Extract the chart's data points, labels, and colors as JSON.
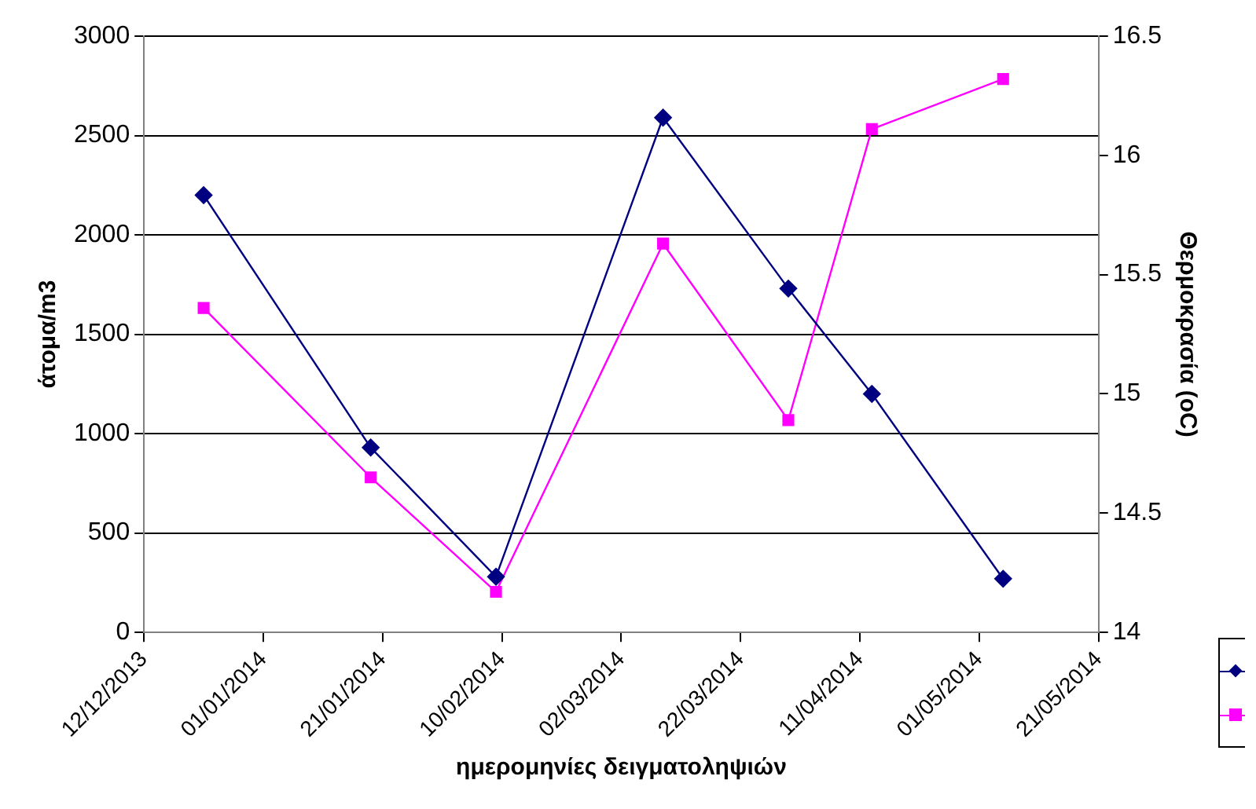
{
  "chart_data": {
    "type": "line",
    "xlabel": "ημερομηνίες δειγματοληψιών",
    "ylabel": "άτομα/m3",
    "y2label": "Θερμοκρασία (oC)",
    "x": [
      "2013-12-22",
      "2014-01-19",
      "2014-02-09",
      "2014-03-09",
      "2014-03-30",
      "2014-04-13",
      "2014-05-05"
    ],
    "series": [
      {
        "color": "#000080",
        "marker": "diamond",
        "values": [
          2200,
          930,
          280,
          2590,
          1730,
          1200,
          270
        ]
      },
      {
        "color": "#ff00ff",
        "marker": "square",
        "axis": "y2",
        "values": [
          15.36,
          14.65,
          14.17,
          15.63,
          14.89,
          16.11,
          16.32
        ]
      }
    ],
    "xlim": [
      "2013-12-12",
      "2014-05-21"
    ],
    "xticks": [
      {
        "value": "2013-12-12",
        "label": "12/12/2013"
      },
      {
        "value": "2014-01-01",
        "label": "01/01/2014"
      },
      {
        "value": "2014-01-21",
        "label": "21/01/2014"
      },
      {
        "value": "2014-02-10",
        "label": "10/02/2014"
      },
      {
        "value": "2014-03-02",
        "label": "02/03/2014"
      },
      {
        "value": "2014-03-22",
        "label": "22/03/2014"
      },
      {
        "value": "2014-04-11",
        "label": "11/04/2014"
      },
      {
        "value": "2014-05-01",
        "label": "01/05/2014"
      },
      {
        "value": "2014-05-21",
        "label": "21/05/2014"
      }
    ],
    "ylim": [
      0,
      3000
    ],
    "yticks": [
      0,
      500,
      1000,
      1500,
      2000,
      2500,
      3000
    ],
    "y2lim": [
      14,
      16.5
    ],
    "y2ticks": [
      14,
      14.5,
      15,
      15.5,
      16,
      16.5
    ],
    "grid": "y",
    "line_style": "solid"
  }
}
